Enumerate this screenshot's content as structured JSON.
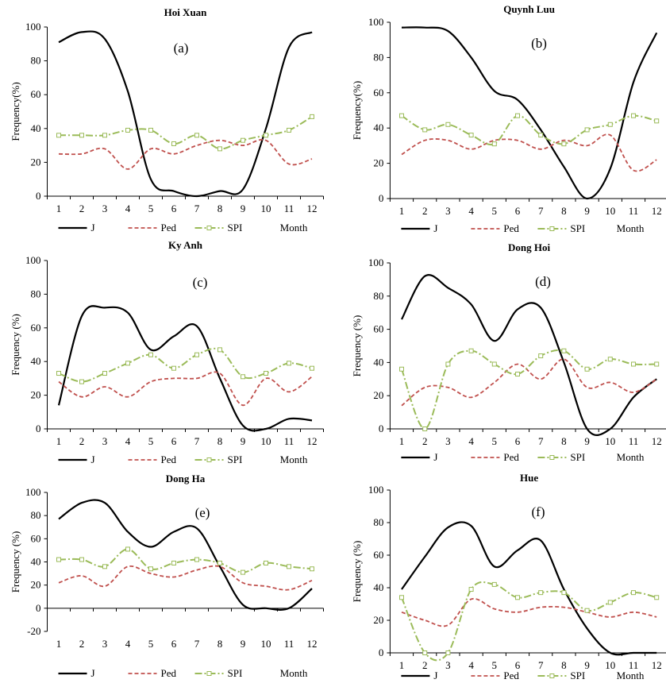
{
  "chart_data": [
    {
      "type": "line",
      "title": "Hoi Xuan",
      "panel_label": "(a)",
      "ylabel": "Frequency(%)",
      "xlabel": "Month",
      "x": [
        1,
        2,
        3,
        4,
        5,
        6,
        7,
        8,
        9,
        10,
        11,
        12
      ],
      "ylim": [
        0,
        100
      ],
      "yticks": [
        0,
        20,
        40,
        60,
        80,
        100
      ],
      "series": [
        {
          "name": "J",
          "values": [
            91,
            97,
            93,
            62,
            10,
            3,
            0,
            3,
            4,
            40,
            88,
            97
          ]
        },
        {
          "name": "Ped",
          "values": [
            25,
            25,
            28,
            16,
            28,
            25,
            30,
            33,
            30,
            33,
            19,
            22
          ]
        },
        {
          "name": "SPI",
          "values": [
            36,
            36,
            36,
            39,
            39,
            31,
            36,
            28,
            33,
            36,
            39,
            47
          ]
        }
      ]
    },
    {
      "type": "line",
      "title": "Quynh Luu",
      "panel_label": "(b)",
      "ylabel": "Frequency(%)",
      "xlabel": "Month",
      "x": [
        1,
        2,
        3,
        4,
        5,
        6,
        7,
        8,
        9,
        10,
        11,
        12
      ],
      "ylim": [
        0,
        100
      ],
      "yticks": [
        0,
        20,
        40,
        60,
        80,
        100
      ],
      "series": [
        {
          "name": "J",
          "values": [
            97,
            97,
            95,
            80,
            61,
            56,
            39,
            18,
            0,
            17,
            66,
            94
          ]
        },
        {
          "name": "Ped",
          "values": [
            25,
            33,
            33,
            28,
            33,
            33,
            28,
            33,
            30,
            36,
            16,
            22
          ]
        },
        {
          "name": "SPI",
          "values": [
            47,
            39,
            42,
            36,
            31,
            47,
            36,
            31,
            39,
            42,
            47,
            44
          ]
        }
      ]
    },
    {
      "type": "line",
      "title": "Ky Anh",
      "panel_label": "(c)",
      "ylabel": "Frequency (%)",
      "xlabel": "Month",
      "x": [
        1,
        2,
        3,
        4,
        5,
        6,
        7,
        8,
        9,
        10,
        11,
        12
      ],
      "ylim": [
        0,
        100
      ],
      "yticks": [
        0,
        20,
        40,
        60,
        80,
        100
      ],
      "series": [
        {
          "name": "J",
          "values": [
            14,
            67,
            72,
            69,
            47,
            55,
            61,
            30,
            2,
            0,
            6,
            5
          ]
        },
        {
          "name": "Ped",
          "values": [
            28,
            19,
            25,
            19,
            28,
            30,
            30,
            33,
            14,
            30,
            22,
            31
          ]
        },
        {
          "name": "SPI",
          "values": [
            33,
            28,
            33,
            39,
            44,
            36,
            44,
            47,
            31,
            33,
            39,
            36
          ]
        }
      ]
    },
    {
      "type": "line",
      "title": "Dong Hoi",
      "panel_label": "(d)",
      "ylabel": "Frequency (%)",
      "xlabel": "Month",
      "x": [
        1,
        2,
        3,
        4,
        5,
        6,
        7,
        8,
        9,
        10,
        11,
        12
      ],
      "ylim": [
        0,
        100
      ],
      "yticks": [
        0,
        20,
        40,
        60,
        80,
        100
      ],
      "series": [
        {
          "name": "J",
          "values": [
            66,
            92,
            85,
            75,
            53,
            72,
            73,
            40,
            0,
            0,
            19,
            30
          ]
        },
        {
          "name": "Ped",
          "values": [
            14,
            25,
            25,
            19,
            28,
            39,
            30,
            42,
            25,
            28,
            22,
            30
          ]
        },
        {
          "name": "SPI",
          "values": [
            36,
            0,
            39,
            47,
            39,
            33,
            44,
            47,
            36,
            42,
            39,
            39
          ]
        }
      ]
    },
    {
      "type": "line",
      "title": "Dong Ha",
      "panel_label": "(e)",
      "ylabel": "Frequency (%)",
      "xlabel": "Month",
      "x": [
        1,
        2,
        3,
        4,
        5,
        6,
        7,
        8,
        9,
        10,
        11,
        12
      ],
      "ylim": [
        -20,
        100
      ],
      "yticks": [
        -20,
        0,
        20,
        40,
        60,
        80,
        100
      ],
      "series": [
        {
          "name": "J",
          "values": [
            77,
            91,
            91,
            66,
            53,
            66,
            69,
            36,
            3,
            0,
            0,
            17
          ]
        },
        {
          "name": "Ped",
          "values": [
            22,
            28,
            19,
            36,
            30,
            27,
            33,
            36,
            22,
            19,
            16,
            24
          ]
        },
        {
          "name": "SPI",
          "values": [
            42,
            42,
            36,
            51,
            34,
            39,
            42,
            39,
            31,
            39,
            36,
            34
          ]
        }
      ]
    },
    {
      "type": "line",
      "title": "Hue",
      "panel_label": "(f)",
      "ylabel": "Frequency (%)",
      "xlabel": "Month",
      "x": [
        1,
        2,
        3,
        4,
        5,
        6,
        7,
        8,
        9,
        10,
        11,
        12
      ],
      "ylim": [
        0,
        100
      ],
      "yticks": [
        0,
        20,
        40,
        60,
        80,
        100
      ],
      "series": [
        {
          "name": "J",
          "values": [
            39,
            59,
            77,
            78,
            53,
            63,
            69,
            39,
            15,
            0,
            0,
            0
          ]
        },
        {
          "name": "Ped",
          "values": [
            25,
            20,
            17,
            33,
            27,
            25,
            28,
            28,
            25,
            22,
            25,
            22
          ]
        },
        {
          "name": "SPI",
          "values": [
            34,
            0,
            0,
            39,
            42,
            34,
            37,
            37,
            26,
            31,
            37,
            34
          ]
        }
      ]
    }
  ],
  "legend": {
    "j_label": "J",
    "ped_label": "Ped",
    "spi_label": "SPI"
  },
  "colors": {
    "J": "#000000",
    "Ped": "#c0504d",
    "SPI": "#9bbb59",
    "axis": "#000000"
  }
}
